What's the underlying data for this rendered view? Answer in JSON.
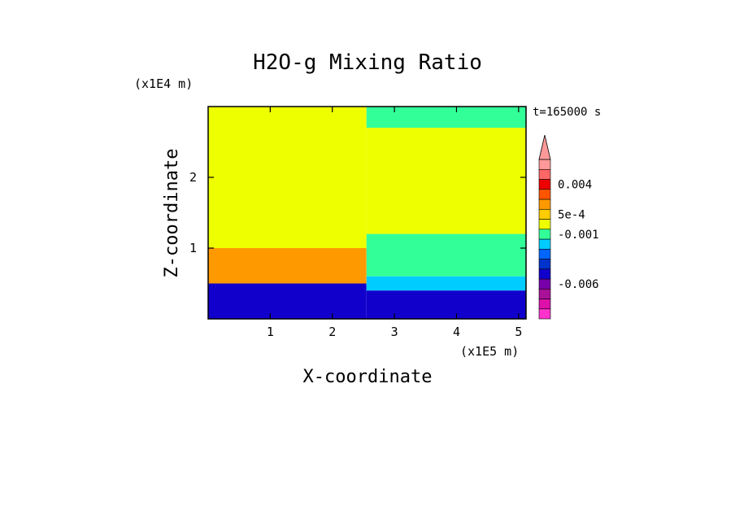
{
  "chart_data": {
    "type": "heatmap",
    "title": "H2O-g Mixing Ratio",
    "xlabel": "X-coordinate",
    "ylabel": "Z-coordinate",
    "x_scale_note": "(x1E5 m)",
    "y_scale_note": "(x1E4 m)",
    "time_label": "t=165000 s",
    "xlim": [
      0,
      5.12
    ],
    "ylim": [
      0,
      3.0
    ],
    "x_ticks": [
      "1",
      "2",
      "3",
      "4",
      "5"
    ],
    "x_tick_values": [
      1,
      2,
      3,
      4,
      5
    ],
    "y_ticks": [
      "1",
      "2"
    ],
    "y_tick_values": [
      1,
      2
    ],
    "colorbar": {
      "levels": [
        {
          "color": "#ff33cc"
        },
        {
          "color": "#dd11aa"
        },
        {
          "color": "#aa1199"
        },
        {
          "color": "#7700aa"
        },
        {
          "color": "#1100cc"
        },
        {
          "color": "#0033cc"
        },
        {
          "color": "#0066ff"
        },
        {
          "color": "#00ccff"
        },
        {
          "color": "#33ff99"
        },
        {
          "color": "#eeff00"
        },
        {
          "color": "#ffcc00"
        },
        {
          "color": "#ff9900"
        },
        {
          "color": "#ff5500"
        },
        {
          "color": "#ee0000"
        },
        {
          "color": "#ff6666"
        },
        {
          "color": "#ff9999"
        }
      ],
      "labels": [
        {
          "text": "0.004",
          "level_index": 13
        },
        {
          "text": "5e-4",
          "level_index": 10
        },
        {
          "text": "-0.001",
          "level_index": 8
        },
        {
          "text": "-0.006",
          "level_index": 3
        }
      ],
      "extend": "max"
    },
    "regions": [
      {
        "name": "upper-left-uniform",
        "x": [
          0,
          2.55
        ],
        "z": [
          1.0,
          3.0
        ],
        "color": "#eeff00"
      },
      {
        "name": "left-orange-band",
        "x": [
          0,
          2.55
        ],
        "z": [
          0.5,
          1.0
        ],
        "color": "#ff9900"
      },
      {
        "name": "left-blue-layer",
        "x": [
          0,
          2.55
        ],
        "z": [
          0,
          0.5
        ],
        "color": "#1100cc"
      },
      {
        "name": "right-yellow-upper",
        "x": [
          2.55,
          5.12
        ],
        "z": [
          1.2,
          2.7
        ],
        "color": "#eeff00"
      },
      {
        "name": "right-green-top",
        "x": [
          2.55,
          5.12
        ],
        "z": [
          2.7,
          3.0
        ],
        "color": "#33ff99"
      },
      {
        "name": "right-green-mid",
        "x": [
          2.55,
          5.12
        ],
        "z": [
          0.6,
          1.2
        ],
        "color": "#33ff99"
      },
      {
        "name": "right-cyan-layer",
        "x": [
          2.55,
          5.12
        ],
        "z": [
          0.4,
          0.6
        ],
        "color": "#00ccff"
      },
      {
        "name": "right-blue-layer",
        "x": [
          2.55,
          5.12
        ],
        "z": [
          0,
          0.4
        ],
        "color": "#1100cc"
      }
    ]
  }
}
